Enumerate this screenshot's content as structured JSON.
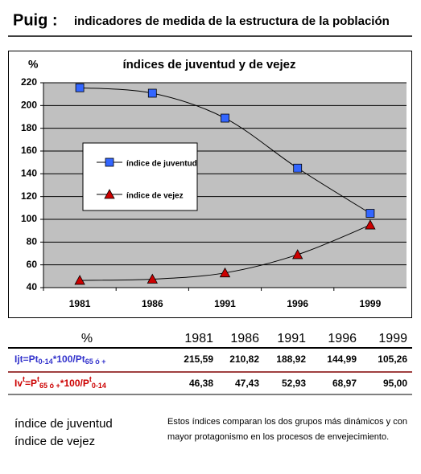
{
  "header": {
    "title": "Puig :",
    "subtitle": "indicadores de medida de la estructura de la población"
  },
  "chart_data": {
    "type": "line",
    "title": "índices de juventud y de vejez",
    "y_label": "%",
    "categories": [
      "1981",
      "1986",
      "1991",
      "1996",
      "1999"
    ],
    "series": [
      {
        "name": "índice de juventud",
        "color": "#3366ff",
        "marker": "square",
        "values": [
          215.59,
          210.82,
          188.92,
          144.99,
          105.26
        ]
      },
      {
        "name": "índice de vejez",
        "color": "#cc0000",
        "marker": "triangle",
        "values": [
          46.38,
          47.43,
          52.93,
          68.97,
          95.0
        ]
      }
    ],
    "ylim": [
      40,
      220
    ],
    "yticks": [
      40,
      60,
      80,
      100,
      120,
      140,
      160,
      180,
      200,
      220
    ],
    "grid": true,
    "legend": "left"
  },
  "table": {
    "header": [
      "%",
      "1981",
      "1986",
      "1991",
      "1996",
      "1999"
    ],
    "rows": [
      {
        "color": "#3333cc",
        "label": [
          {
            "text": "Ijt=Pt"
          },
          {
            "sub": "0-14"
          },
          {
            "text": "*100/Pt"
          },
          {
            "sub": "65 ó +"
          }
        ],
        "cells": [
          "215,59",
          "210,82",
          "188,92",
          "144,99",
          "105,26"
        ]
      },
      {
        "color": "#cc0000",
        "label": [
          {
            "text": "Iv"
          },
          {
            "sup": "t"
          },
          {
            "text": "=P"
          },
          {
            "sup": "t"
          },
          {
            "sub": "65 ó +"
          },
          {
            "text": "*100/P"
          },
          {
            "sup": "t"
          },
          {
            "sub": "0-14"
          }
        ],
        "cells": [
          "46,38",
          "47,43",
          "52,93",
          "68,97",
          "95,00"
        ]
      }
    ]
  },
  "footer": {
    "labels": [
      "índice de juventud",
      "índice de vejez"
    ],
    "note": "Estos índices comparan los dos grupos más dinámicos y con mayor protagonismo en los procesos de envejecimiento."
  }
}
